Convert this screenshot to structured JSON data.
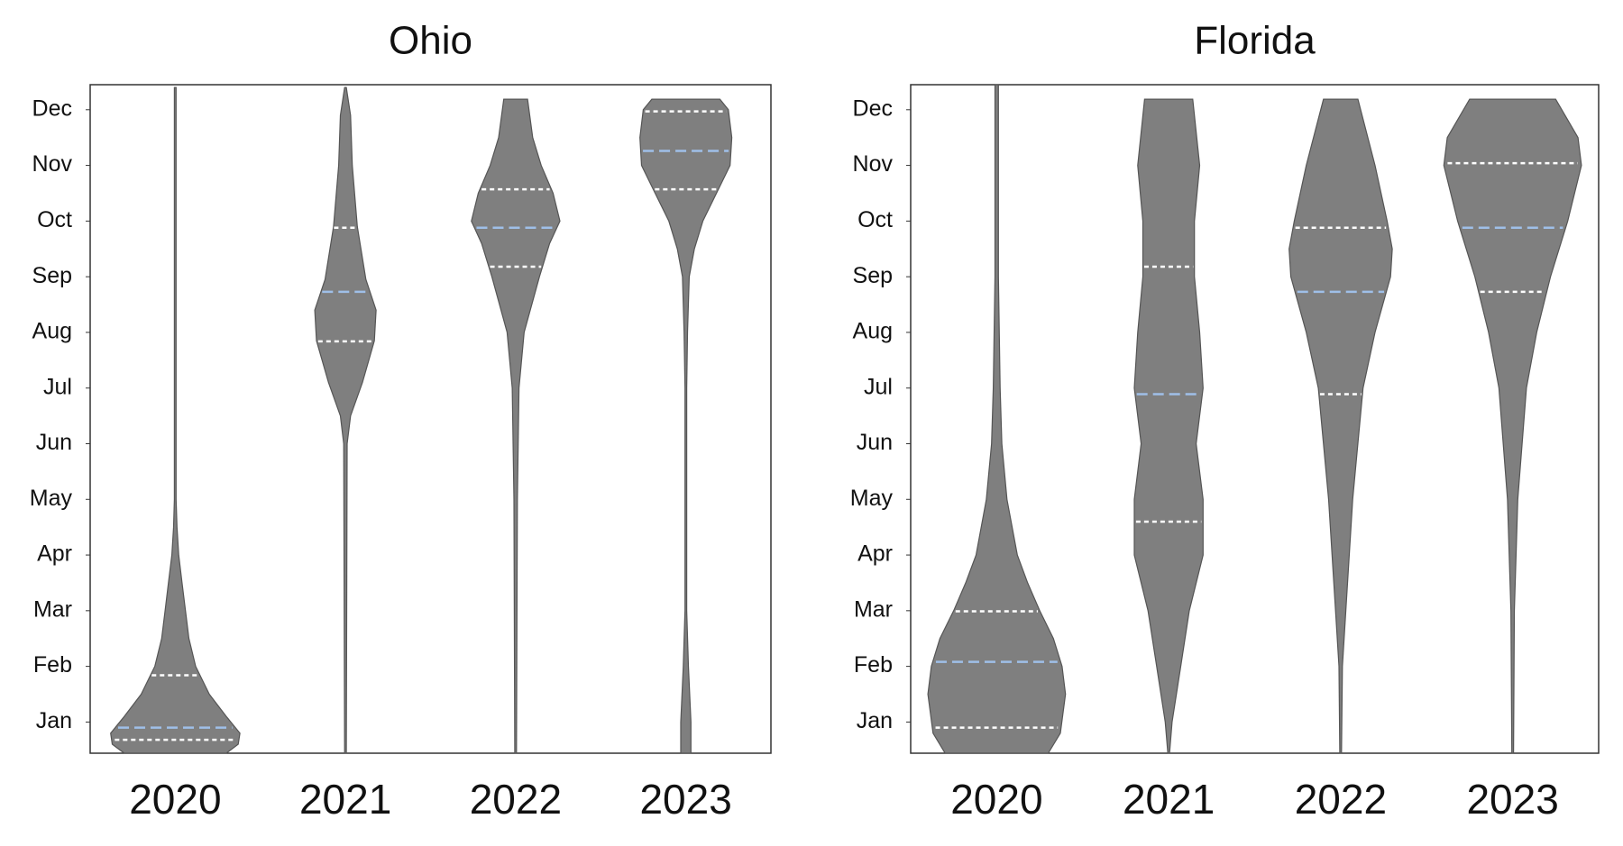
{
  "chart_data": [
    {
      "type": "violin",
      "title": "Ohio",
      "categories": [
        "2020",
        "2021",
        "2022",
        "2023"
      ],
      "ylim": [
        0.44,
        12.45
      ],
      "yticks": [
        {
          "value": 1,
          "label": "Jan"
        },
        {
          "value": 2,
          "label": "Feb"
        },
        {
          "value": 3,
          "label": "Mar"
        },
        {
          "value": 4,
          "label": "Apr"
        },
        {
          "value": 5,
          "label": "May"
        },
        {
          "value": 6,
          "label": "Jun"
        },
        {
          "value": 7,
          "label": "Jul"
        },
        {
          "value": 8,
          "label": "Aug"
        },
        {
          "value": 9,
          "label": "Sep"
        },
        {
          "value": 10,
          "label": "Oct"
        },
        {
          "value": 11,
          "label": "Nov"
        },
        {
          "value": 12,
          "label": "Dec"
        }
      ],
      "fill_color": "#7f7f7f",
      "quartile_color": "#ffffff",
      "median_color": "#9fbfe8",
      "violins": [
        {
          "q1": 0.68,
          "median": 0.9,
          "q3": 1.84,
          "density_y": [
            0.44,
            0.6,
            0.8,
            1.1,
            1.5,
            2.0,
            2.5,
            3.0,
            3.5,
            4.0,
            4.5,
            5,
            12.4
          ],
          "density_width": [
            0.3,
            0.37,
            0.38,
            0.3,
            0.2,
            0.12,
            0.08,
            0.06,
            0.04,
            0.02,
            0.01,
            0.005,
            0.005
          ]
        },
        {
          "q1": 7.84,
          "median": 8.73,
          "q3": 9.88,
          "density_y": [
            0.44,
            6,
            6.5,
            7.1,
            7.85,
            8.4,
            8.95,
            9.9,
            11,
            11.9,
            12.4
          ],
          "density_width": [
            0.005,
            0.01,
            0.03,
            0.1,
            0.17,
            0.18,
            0.12,
            0.07,
            0.04,
            0.03,
            0.005
          ]
        },
        {
          "q1": 9.18,
          "median": 9.88,
          "q3": 10.57,
          "density_y": [
            0.44,
            5,
            7,
            8,
            9,
            9.6,
            10,
            10.5,
            11,
            11.5,
            12.19
          ],
          "density_width": [
            0.005,
            0.01,
            0.02,
            0.05,
            0.14,
            0.2,
            0.26,
            0.22,
            0.15,
            0.1,
            0.07
          ]
        },
        {
          "q1": 10.57,
          "median": 11.26,
          "q3": 11.97,
          "density_y": [
            0.44,
            1,
            2,
            3,
            7,
            8,
            9,
            9.5,
            10,
            10.5,
            11,
            11.5,
            12,
            12.19
          ],
          "density_width": [
            0.03,
            0.03,
            0.015,
            0.005,
            0.005,
            0.01,
            0.02,
            0.05,
            0.1,
            0.18,
            0.26,
            0.27,
            0.25,
            0.2
          ]
        }
      ]
    },
    {
      "type": "violin",
      "title": "Florida",
      "categories": [
        "2020",
        "2021",
        "2022",
        "2023"
      ],
      "ylim": [
        0.44,
        12.45
      ],
      "yticks": [
        {
          "value": 1,
          "label": "Jan"
        },
        {
          "value": 2,
          "label": "Feb"
        },
        {
          "value": 3,
          "label": "Mar"
        },
        {
          "value": 4,
          "label": "Apr"
        },
        {
          "value": 5,
          "label": "May"
        },
        {
          "value": 6,
          "label": "Jun"
        },
        {
          "value": 7,
          "label": "Jul"
        },
        {
          "value": 8,
          "label": "Aug"
        },
        {
          "value": 9,
          "label": "Sep"
        },
        {
          "value": 10,
          "label": "Oct"
        },
        {
          "value": 11,
          "label": "Nov"
        },
        {
          "value": 12,
          "label": "Dec"
        }
      ],
      "fill_color": "#7f7f7f",
      "quartile_color": "#ffffff",
      "median_color": "#9fbfe8",
      "violins": [
        {
          "q1": 0.9,
          "median": 2.08,
          "q3": 2.99,
          "density_y": [
            0.44,
            0.8,
            1.5,
            2.0,
            2.5,
            3.0,
            3.5,
            4,
            5,
            6,
            7,
            9,
            12.45
          ],
          "density_width": [
            0.3,
            0.37,
            0.4,
            0.38,
            0.33,
            0.25,
            0.18,
            0.12,
            0.06,
            0.03,
            0.02,
            0.01,
            0.01
          ]
        },
        {
          "q1": 4.6,
          "median": 6.89,
          "q3": 9.18,
          "density_y": [
            0.44,
            1,
            2,
            3,
            4,
            5,
            6,
            7,
            8,
            9,
            10,
            11,
            12.19
          ],
          "density_width": [
            0.005,
            0.02,
            0.07,
            0.12,
            0.2,
            0.2,
            0.16,
            0.2,
            0.18,
            0.15,
            0.15,
            0.18,
            0.14
          ]
        },
        {
          "q1": 6.89,
          "median": 8.73,
          "q3": 9.88,
          "density_y": [
            0.44,
            2,
            3,
            5,
            7,
            8,
            9,
            9.5,
            10,
            11,
            12.19
          ],
          "density_width": [
            0.005,
            0.01,
            0.03,
            0.07,
            0.13,
            0.2,
            0.29,
            0.3,
            0.27,
            0.2,
            0.1
          ]
        },
        {
          "q1": 8.73,
          "median": 9.88,
          "q3": 11.04,
          "density_y": [
            0.44,
            3,
            5,
            7,
            8,
            9,
            10,
            11,
            11.5,
            12.19
          ],
          "density_width": [
            0.005,
            0.01,
            0.03,
            0.08,
            0.14,
            0.22,
            0.32,
            0.4,
            0.38,
            0.25
          ]
        }
      ]
    }
  ]
}
